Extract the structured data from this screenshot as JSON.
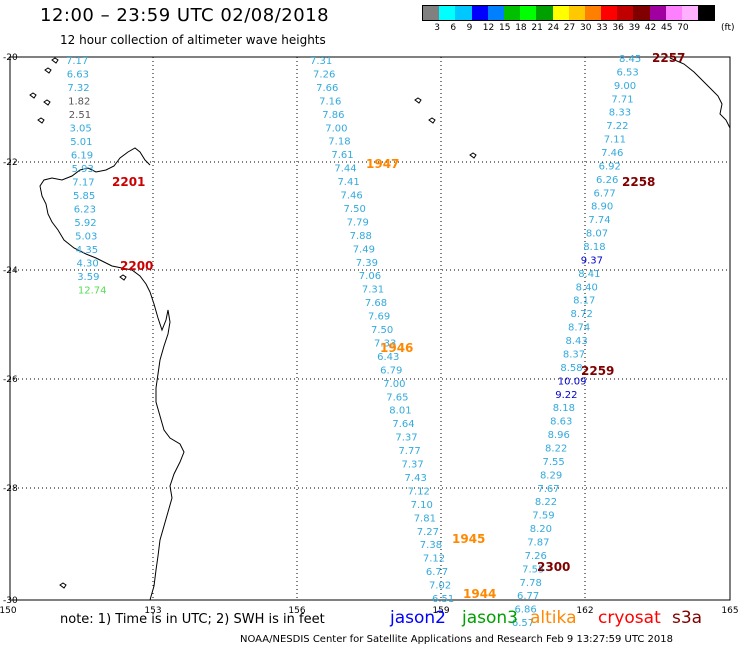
{
  "title": "12:00 – 23:59 UTC 02/08/2018",
  "subtitle": "12 hour collection of altimeter wave heights",
  "legend": {
    "colors": [
      "#808080",
      "#00ffff",
      "#00c8ff",
      "#0000ff",
      "#0080ff",
      "#00c000",
      "#00ff00",
      "#00a000",
      "#ffff00",
      "#ffc800",
      "#ff8000",
      "#ff0000",
      "#c00000",
      "#800000",
      "#a000a0",
      "#ff80ff",
      "#ffb0ff",
      "#000000"
    ],
    "ticks": [
      "3",
      "6",
      "9",
      "12",
      "15",
      "18",
      "21",
      "24",
      "27",
      "30",
      "33",
      "36",
      "39",
      "42",
      "45",
      "70"
    ],
    "unit": "(ft)"
  },
  "axes": {
    "lon_labels": [
      "150",
      "153",
      "156",
      "159",
      "162",
      "165"
    ],
    "lat_labels": [
      "-20",
      "-22",
      "-24",
      "-26",
      "-28",
      "-30"
    ]
  },
  "tracks": {
    "west": {
      "color": "#33aadd",
      "values": [
        "7.17",
        "6.63",
        "7.32",
        "1.82",
        "2.51",
        "3.05",
        "5.01",
        "6.19",
        "5.93",
        "7.17",
        "5.85",
        "6.23",
        "5.92",
        "5.03",
        "4.35",
        "4.30",
        "3.59",
        "12.74"
      ]
    },
    "middle": {
      "color": "#33aadd",
      "values": [
        "7.31",
        "7.26",
        "7.66",
        "7.16",
        "7.86",
        "7.00",
        "7.18",
        "7.61",
        "7.44",
        "7.41",
        "7.46",
        "7.50",
        "7.79",
        "7.88",
        "7.49",
        "7.39",
        "7.06",
        "7.31",
        "7.68",
        "7.69",
        "7.50",
        "7.33",
        "6.43",
        "6.79",
        "7.00",
        "7.65",
        "8.01",
        "7.64",
        "7.37",
        "7.77",
        "7.37",
        "7.43",
        "7.12",
        "7.10",
        "7.81",
        "7.27",
        "7.38",
        "7.12",
        "6.77",
        "7.02",
        "6.51"
      ]
    },
    "east": {
      "color": "#33aadd",
      "values": [
        "8.45",
        "6.53",
        "9.00",
        "7.71",
        "8.33",
        "7.22",
        "7.11",
        "7.46",
        "6.92",
        "6.26",
        "6.77",
        "8.90",
        "7.74",
        "8.07",
        "8.18",
        "9.37",
        "8.41",
        "8.40",
        "8.17",
        "8.72",
        "8.74",
        "8.43",
        "8.37",
        "8.58",
        "10.09",
        "9.22",
        "8.18",
        "8.63",
        "8.96",
        "8.22",
        "7.55",
        "8.29",
        "7.67",
        "8.22",
        "7.59",
        "8.20",
        "7.87",
        "7.26",
        "7.55",
        "7.78",
        "6.77",
        "6.86",
        "6.57"
      ]
    }
  },
  "time_labels": [
    {
      "text": "2201",
      "color": "#cc0000"
    },
    {
      "text": "2200",
      "color": "#cc0000"
    },
    {
      "text": "1947",
      "color": "#ff8800"
    },
    {
      "text": "1946",
      "color": "#ff8800"
    },
    {
      "text": "1945",
      "color": "#ff8800"
    },
    {
      "text": "1944",
      "color": "#ff8800"
    },
    {
      "text": "2257",
      "color": "#800000"
    },
    {
      "text": "2258",
      "color": "#800000"
    },
    {
      "text": "2259",
      "color": "#800000"
    },
    {
      "text": "2300",
      "color": "#800000"
    }
  ],
  "footer": {
    "note": "note: 1) Time is in UTC; 2) SWH is in feet",
    "satellites": [
      {
        "name": "jason2",
        "color": "#0000ff"
      },
      {
        "name": "jason3",
        "color": "#00a000"
      },
      {
        "name": "altika",
        "color": "#ff8800"
      },
      {
        "name": "cryosat",
        "color": "#ff0000"
      },
      {
        "name": "s3a",
        "color": "#800000"
      }
    ],
    "credit": "NOAA/NESDIS Center for Satellite Applications and Research    Feb  9 13:27:59 UTC 2018"
  }
}
